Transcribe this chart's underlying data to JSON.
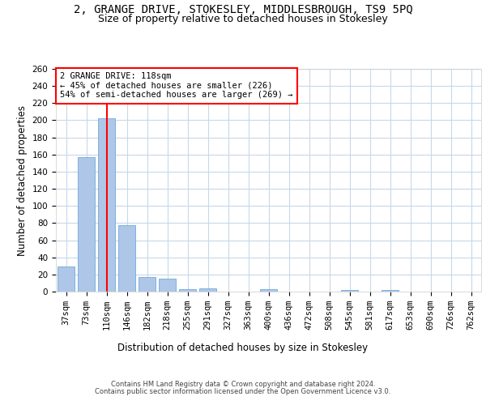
{
  "title1": "2, GRANGE DRIVE, STOKESLEY, MIDDLESBROUGH, TS9 5PQ",
  "title2": "Size of property relative to detached houses in Stokesley",
  "xlabel": "Distribution of detached houses by size in Stokesley",
  "ylabel": "Number of detached properties",
  "categories": [
    "37sqm",
    "73sqm",
    "110sqm",
    "146sqm",
    "182sqm",
    "218sqm",
    "255sqm",
    "291sqm",
    "327sqm",
    "363sqm",
    "400sqm",
    "436sqm",
    "472sqm",
    "508sqm",
    "545sqm",
    "581sqm",
    "617sqm",
    "653sqm",
    "690sqm",
    "726sqm",
    "762sqm"
  ],
  "values": [
    29,
    157,
    202,
    78,
    17,
    15,
    3,
    4,
    0,
    0,
    3,
    0,
    0,
    0,
    2,
    0,
    2,
    0,
    0,
    0,
    0
  ],
  "bar_color": "#aec6e8",
  "bar_edge_color": "#5a9fd4",
  "red_line_index": 2,
  "annotation_text1": "2 GRANGE DRIVE: 118sqm",
  "annotation_text2": "← 45% of detached houses are smaller (226)",
  "annotation_text3": "54% of semi-detached houses are larger (269) →",
  "ylim": [
    0,
    260
  ],
  "yticks": [
    0,
    20,
    40,
    60,
    80,
    100,
    120,
    140,
    160,
    180,
    200,
    220,
    240,
    260
  ],
  "footer1": "Contains HM Land Registry data © Crown copyright and database right 2024.",
  "footer2": "Contains public sector information licensed under the Open Government Licence v3.0.",
  "background_color": "#ffffff",
  "grid_color": "#c8d8e8",
  "title1_fontsize": 10,
  "title2_fontsize": 9,
  "axis_fontsize": 7.5,
  "xlabel_fontsize": 8.5,
  "ylabel_fontsize": 8.5
}
